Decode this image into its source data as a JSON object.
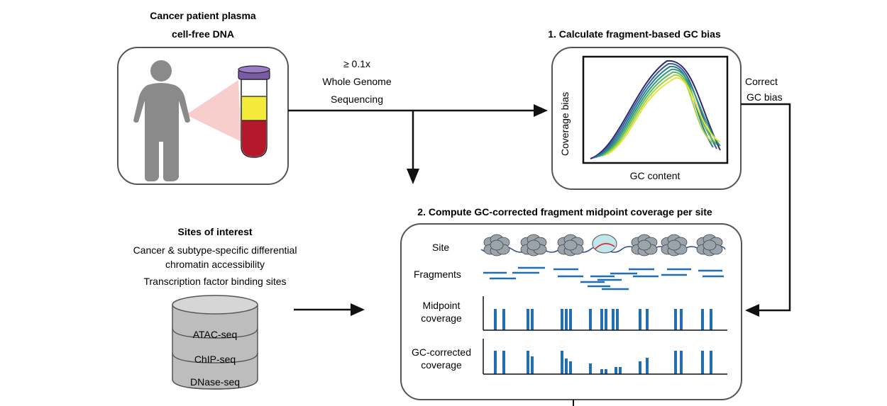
{
  "patient": {
    "title_line1": "Cancer patient plasma",
    "title_line2": "cell-free DNA"
  },
  "sequencing": {
    "line1": "≥ 0.1x",
    "line2": "Whole Genome",
    "line3": "Sequencing"
  },
  "step1": {
    "title": "1. Calculate fragment-based GC bias",
    "ylabel": "Coverage bias",
    "xlabel": "GC content",
    "correct_line1": "Correct",
    "correct_line2": "GC bias"
  },
  "step2": {
    "title": "2. Compute GC-corrected fragment midpoint coverage per site",
    "row_site": "Site",
    "row_fragments": "Fragments",
    "row_midpoint_line1": "Midpoint",
    "row_midpoint_line2": "coverage",
    "row_gc_line1": "GC-corrected",
    "row_gc_line2": "coverage"
  },
  "sites": {
    "title": "Sites of interest",
    "line1": "Cancer & subtype-specific differential",
    "line2": "chromatin accessibility",
    "line3": "Transcription factor binding sites"
  },
  "database": {
    "layer1": "ATAC-seq",
    "layer2": "ChIP-seq",
    "layer3": "DNase-seq"
  },
  "colors": {
    "tube_cap": "#7b5aa6",
    "plasma": "#f3ea3a",
    "blood": "#b5172b",
    "person": "#8a8a8a",
    "bars": "#1f6fb2",
    "nucleosome": "#9aa4ad",
    "tf_site": "#bfe6ea",
    "dna": "#2b4a9a"
  }
}
